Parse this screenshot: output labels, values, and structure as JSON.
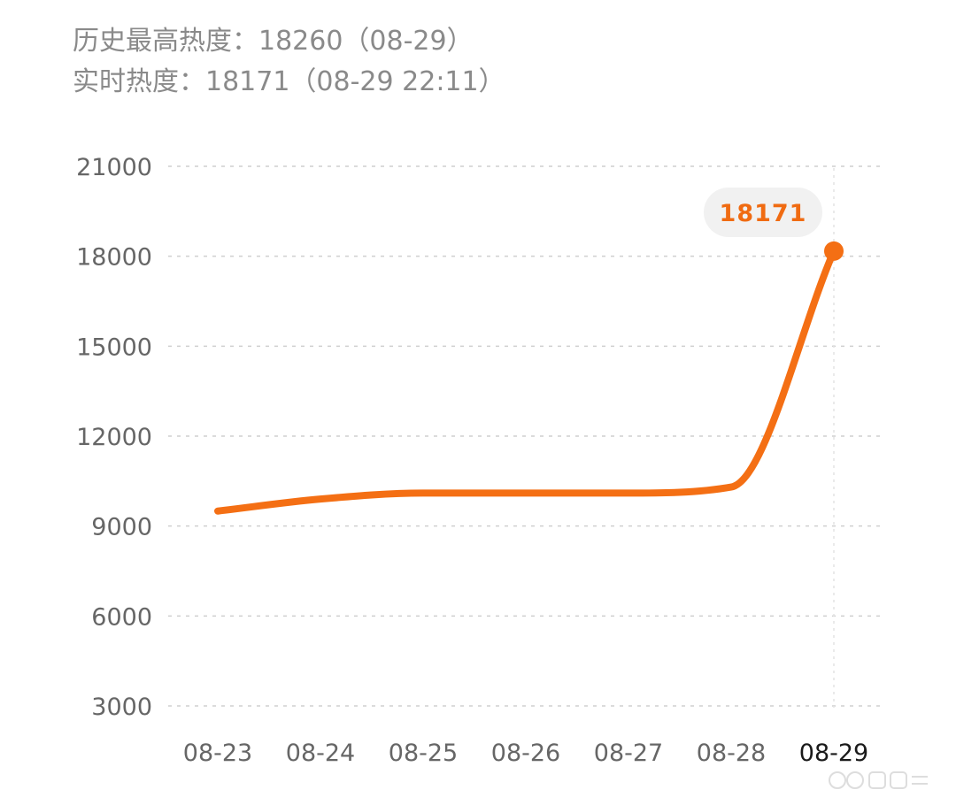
{
  "header": {
    "peak_line": "历史最高热度：18260（08-29）",
    "current_line": "实时热度：18171（08-29 22:11）"
  },
  "colors": {
    "line": "#f46f14",
    "grid": "#cfcfcf",
    "bubble_bg": "#f1f1f1",
    "bubble_text": "#f06b12"
  },
  "chart_data": {
    "type": "line",
    "title": "",
    "xlabel": "",
    "ylabel": "",
    "categories": [
      "08-23",
      "08-24",
      "08-25",
      "08-26",
      "08-27",
      "08-28",
      "08-29"
    ],
    "active_category": "08-29",
    "y_ticks": [
      3000,
      6000,
      9000,
      12000,
      15000,
      18000,
      21000
    ],
    "ylim": [
      3000,
      21000
    ],
    "grid": true,
    "series": [
      {
        "name": "",
        "values": [
          9500,
          9900,
          10100,
          10100,
          10100,
          10300,
          18171
        ]
      }
    ],
    "highlight": {
      "category": "08-29",
      "value": 18171,
      "label": "18171"
    }
  }
}
